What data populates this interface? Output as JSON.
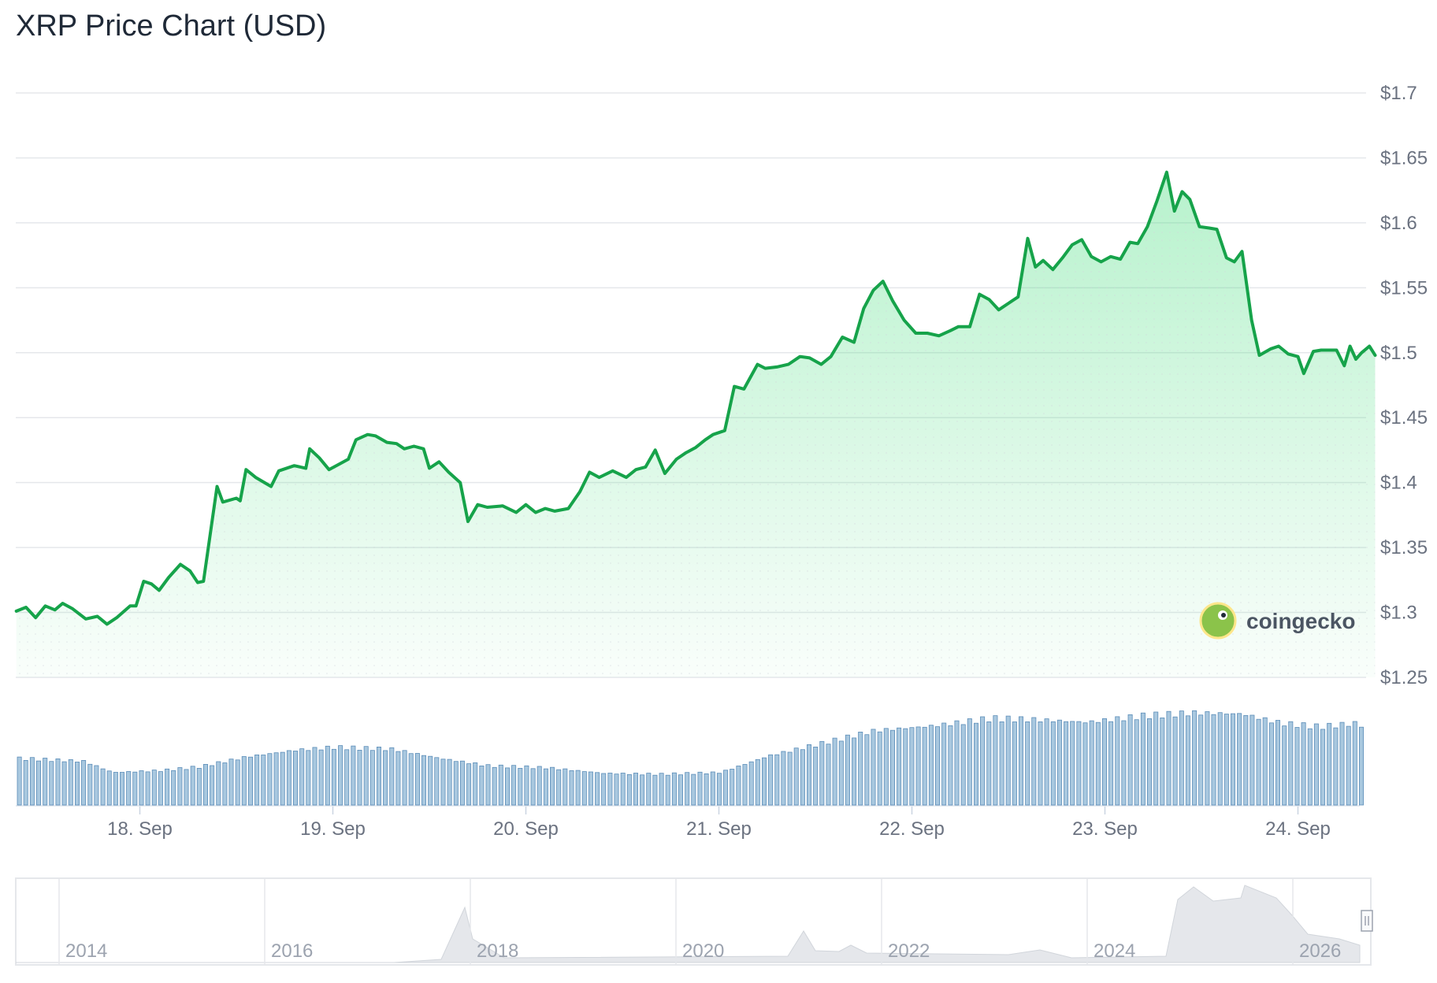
{
  "title": "XRP Price Chart (USD)",
  "brand": {
    "name": "coingecko",
    "logo_icon": "gecko-logo-icon"
  },
  "colors": {
    "line": "#16a34a",
    "fill": "#bbf7d0",
    "volume_bar": "#a9c8df",
    "volume_edge": "#5b8db8",
    "grid": "#e5e7eb",
    "navigator_area": "#e5e7eb"
  },
  "chart_data": {
    "type": "line",
    "y_ticks": [
      "$1.25",
      "$1.3",
      "$1.35",
      "$1.4",
      "$1.45",
      "$1.5",
      "$1.55",
      "$1.6",
      "$1.65",
      "$1.7"
    ],
    "ylim": [
      1.25,
      1.7
    ],
    "x_ticks": [
      "18. Sep",
      "19. Sep",
      "20. Sep",
      "21. Sep",
      "22. Sep",
      "23. Sep",
      "24. Sep"
    ],
    "xlim_days": [
      17.36,
      24.35
    ],
    "series": [
      {
        "values": [
          [
            17.36,
            1.301
          ],
          [
            17.41,
            1.304
          ],
          [
            17.46,
            1.296
          ],
          [
            17.51,
            1.305
          ],
          [
            17.56,
            1.302
          ],
          [
            17.6,
            1.307
          ],
          [
            17.65,
            1.303
          ],
          [
            17.72,
            1.295
          ],
          [
            17.78,
            1.297
          ],
          [
            17.83,
            1.291
          ],
          [
            17.88,
            1.296
          ],
          [
            17.95,
            1.305
          ],
          [
            17.98,
            1.305
          ],
          [
            18.02,
            1.324
          ],
          [
            18.06,
            1.322
          ],
          [
            18.1,
            1.317
          ],
          [
            18.15,
            1.327
          ],
          [
            18.21,
            1.337
          ],
          [
            18.26,
            1.332
          ],
          [
            18.3,
            1.323
          ],
          [
            18.33,
            1.324
          ],
          [
            18.4,
            1.397
          ],
          [
            18.43,
            1.385
          ],
          [
            18.5,
            1.388
          ],
          [
            18.52,
            1.386
          ],
          [
            18.55,
            1.41
          ],
          [
            18.6,
            1.404
          ],
          [
            18.68,
            1.397
          ],
          [
            18.72,
            1.409
          ],
          [
            18.8,
            1.413
          ],
          [
            18.86,
            1.411
          ],
          [
            18.88,
            1.426
          ],
          [
            18.93,
            1.419
          ],
          [
            18.98,
            1.41
          ],
          [
            19.03,
            1.414
          ],
          [
            19.08,
            1.418
          ],
          [
            19.12,
            1.433
          ],
          [
            19.18,
            1.437
          ],
          [
            19.22,
            1.436
          ],
          [
            19.28,
            1.431
          ],
          [
            19.33,
            1.43
          ],
          [
            19.37,
            1.426
          ],
          [
            19.42,
            1.428
          ],
          [
            19.47,
            1.426
          ],
          [
            19.5,
            1.411
          ],
          [
            19.55,
            1.416
          ],
          [
            19.6,
            1.408
          ],
          [
            19.66,
            1.4
          ],
          [
            19.7,
            1.37
          ],
          [
            19.75,
            1.383
          ],
          [
            19.8,
            1.381
          ],
          [
            19.88,
            1.382
          ],
          [
            19.95,
            1.377
          ],
          [
            20.0,
            1.383
          ],
          [
            20.05,
            1.377
          ],
          [
            20.1,
            1.38
          ],
          [
            20.15,
            1.378
          ],
          [
            20.22,
            1.38
          ],
          [
            20.28,
            1.393
          ],
          [
            20.33,
            1.408
          ],
          [
            20.38,
            1.404
          ],
          [
            20.45,
            1.409
          ],
          [
            20.52,
            1.404
          ],
          [
            20.57,
            1.41
          ],
          [
            20.62,
            1.412
          ],
          [
            20.67,
            1.425
          ],
          [
            20.72,
            1.407
          ],
          [
            20.78,
            1.418
          ],
          [
            20.83,
            1.423
          ],
          [
            20.88,
            1.427
          ],
          [
            20.93,
            1.433
          ],
          [
            20.97,
            1.437
          ],
          [
            21.03,
            1.44
          ],
          [
            21.08,
            1.474
          ],
          [
            21.13,
            1.472
          ],
          [
            21.2,
            1.491
          ],
          [
            21.24,
            1.488
          ],
          [
            21.3,
            1.489
          ],
          [
            21.36,
            1.491
          ],
          [
            21.42,
            1.497
          ],
          [
            21.47,
            1.496
          ],
          [
            21.53,
            1.491
          ],
          [
            21.58,
            1.497
          ],
          [
            21.64,
            1.512
          ],
          [
            21.7,
            1.508
          ],
          [
            21.75,
            1.534
          ],
          [
            21.8,
            1.548
          ],
          [
            21.85,
            1.555
          ],
          [
            21.9,
            1.54
          ],
          [
            21.96,
            1.525
          ],
          [
            22.02,
            1.515
          ],
          [
            22.08,
            1.515
          ],
          [
            22.14,
            1.513
          ],
          [
            22.2,
            1.517
          ],
          [
            22.24,
            1.52
          ],
          [
            22.3,
            1.52
          ],
          [
            22.35,
            1.545
          ],
          [
            22.4,
            1.541
          ],
          [
            22.45,
            1.533
          ],
          [
            22.5,
            1.538
          ],
          [
            22.55,
            1.543
          ],
          [
            22.6,
            1.588
          ],
          [
            22.64,
            1.566
          ],
          [
            22.68,
            1.571
          ],
          [
            22.73,
            1.564
          ],
          [
            22.78,
            1.573
          ],
          [
            22.83,
            1.583
          ],
          [
            22.88,
            1.587
          ],
          [
            22.93,
            1.574
          ],
          [
            22.98,
            1.57
          ],
          [
            23.03,
            1.574
          ],
          [
            23.08,
            1.572
          ],
          [
            23.13,
            1.585
          ],
          [
            23.17,
            1.584
          ],
          [
            23.22,
            1.597
          ],
          [
            23.27,
            1.617
          ],
          [
            23.32,
            1.639
          ],
          [
            23.36,
            1.609
          ],
          [
            23.4,
            1.624
          ],
          [
            23.44,
            1.618
          ],
          [
            23.49,
            1.597
          ],
          [
            23.54,
            1.596
          ],
          [
            23.58,
            1.595
          ],
          [
            23.63,
            1.573
          ],
          [
            23.67,
            1.57
          ],
          [
            23.71,
            1.578
          ],
          [
            23.76,
            1.525
          ],
          [
            23.8,
            1.498
          ],
          [
            23.86,
            1.503
          ],
          [
            23.9,
            1.505
          ],
          [
            23.95,
            1.499
          ],
          [
            24.0,
            1.497
          ],
          [
            24.03,
            1.484
          ],
          [
            24.08,
            1.501
          ],
          [
            24.12,
            1.502
          ],
          [
            24.16,
            1.502
          ],
          [
            24.2,
            1.502
          ],
          [
            24.24,
            1.49
          ],
          [
            24.27,
            1.505
          ],
          [
            24.3,
            1.495
          ],
          [
            24.33,
            1.5
          ],
          [
            24.37,
            1.505
          ],
          [
            24.4,
            1.498
          ]
        ]
      }
    ],
    "volume_note_points": [
      [
        17.36,
        0.5
      ],
      [
        17.7,
        0.47
      ],
      [
        17.85,
        0.35
      ],
      [
        18.1,
        0.37
      ],
      [
        18.3,
        0.41
      ],
      [
        18.55,
        0.52
      ],
      [
        18.8,
        0.59
      ],
      [
        19.0,
        0.62
      ],
      [
        19.3,
        0.6
      ],
      [
        19.55,
        0.5
      ],
      [
        19.8,
        0.42
      ],
      [
        20.1,
        0.4
      ],
      [
        20.4,
        0.34
      ],
      [
        20.7,
        0.33
      ],
      [
        21.0,
        0.35
      ],
      [
        21.25,
        0.53
      ],
      [
        21.5,
        0.65
      ],
      [
        21.8,
        0.8
      ],
      [
        22.1,
        0.85
      ],
      [
        22.4,
        0.93
      ],
      [
        22.6,
        0.92
      ],
      [
        22.9,
        0.89
      ],
      [
        23.2,
        0.96
      ],
      [
        23.45,
        0.99
      ],
      [
        23.7,
        0.98
      ],
      [
        23.9,
        0.88
      ],
      [
        24.1,
        0.84
      ],
      [
        24.3,
        0.88
      ],
      [
        24.4,
        0.74
      ]
    ],
    "navigator": {
      "year_labels": [
        "2014",
        "2016",
        "2018",
        "2020",
        "2022",
        "2024",
        "2026"
      ]
    }
  }
}
